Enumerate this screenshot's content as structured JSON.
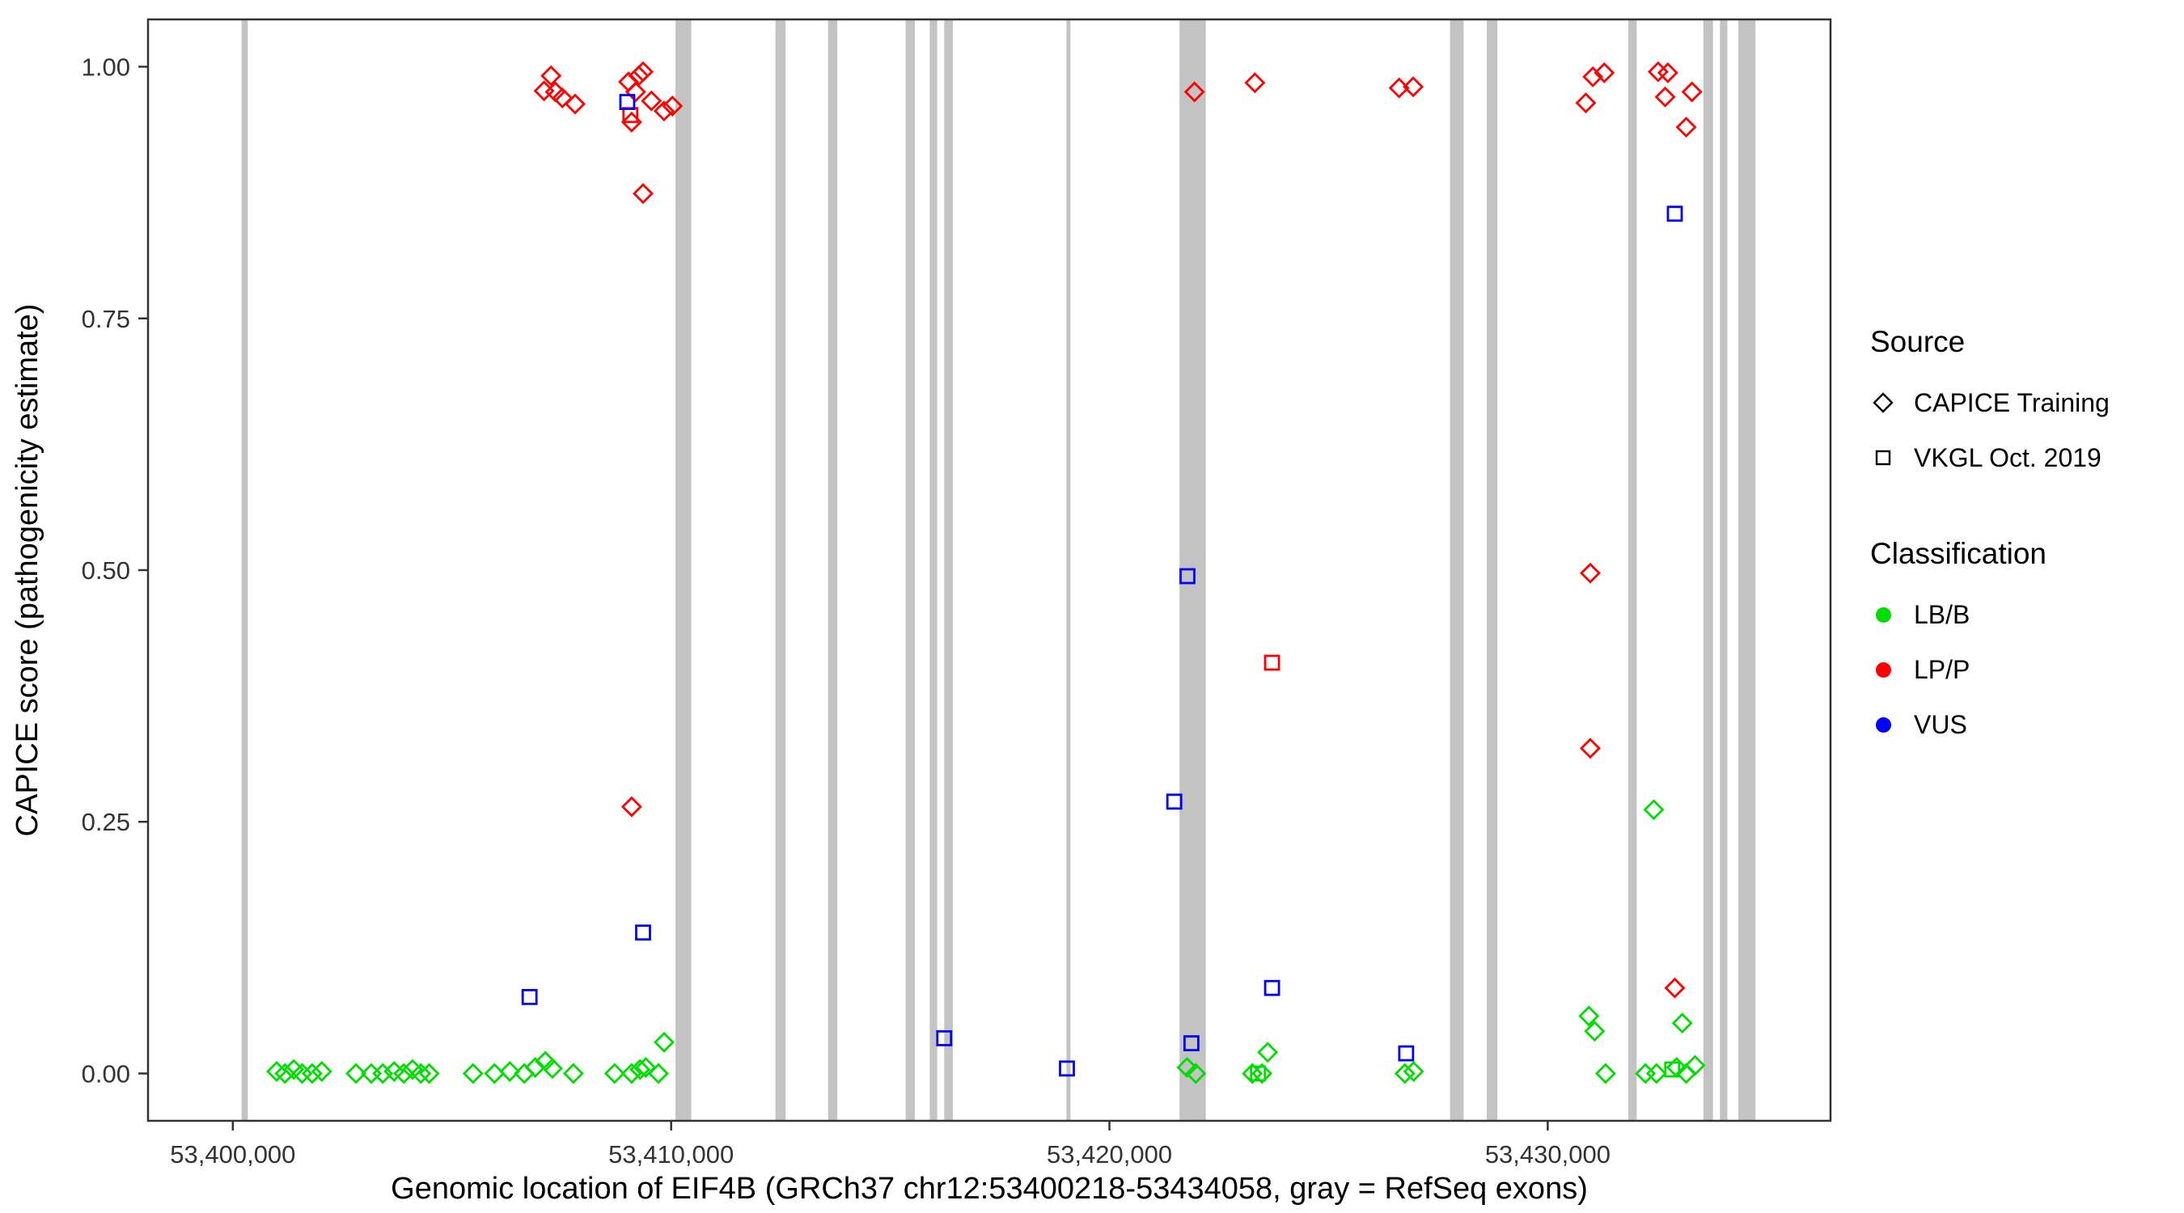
{
  "legend": {
    "source": {
      "title": "Source",
      "items": [
        {
          "label": "CAPICE Training",
          "shape": "diamond"
        },
        {
          "label": "VKGL Oct. 2019",
          "shape": "square"
        }
      ]
    },
    "classification": {
      "title": "Classification",
      "items": [
        {
          "label": "LB/B",
          "color": "#00DD00"
        },
        {
          "label": "LP/P",
          "color": "#FF0000"
        },
        {
          "label": "VUS",
          "color": "#0000FF"
        }
      ]
    }
  },
  "chart_data": {
    "type": "scatter",
    "title": "",
    "xlabel": "Genomic location of EIF4B (GRCh37 chr12:53400218-53434058, gray = RefSeq exons)",
    "ylabel": "CAPICE score (pathogenicity estimate)",
    "xlim": [
      53398065,
      53436452
    ],
    "ylim": [
      -0.047,
      1.047
    ],
    "grid": false,
    "legend_position": "right",
    "x_ticks": {
      "values": [
        53400000,
        53410000,
        53420000,
        53430000
      ],
      "labels": [
        "53,400,000",
        "53,410,000",
        "53,420,000",
        "53,430,000"
      ]
    },
    "y_ticks": {
      "values": [
        0,
        0.25,
        0.5,
        0.75,
        1
      ],
      "labels": [
        "0.00",
        "0.25",
        "0.50",
        "0.75",
        "1.00"
      ]
    },
    "exon_color": "#C3C3C3",
    "exons": [
      [
        53400200,
        53400340
      ],
      [
        53410100,
        53410460
      ],
      [
        53412380,
        53412610
      ],
      [
        53413580,
        53413790
      ],
      [
        53415350,
        53415560
      ],
      [
        53415900,
        53416070
      ],
      [
        53416230,
        53416430
      ],
      [
        53419020,
        53419110
      ],
      [
        53421600,
        53422200
      ],
      [
        53427770,
        53428080
      ],
      [
        53428610,
        53428850
      ],
      [
        53431840,
        53432030
      ],
      [
        53433550,
        53433770
      ],
      [
        53433930,
        53434100
      ],
      [
        53434350,
        53434740
      ]
    ],
    "series": [
      {
        "name": "CAPICE Training / LB/B",
        "source": "CAPICE Training",
        "classification": "LB/B",
        "shape": "diamond",
        "color": "#00DD00",
        "points": [
          [
            53401000,
            0.002
          ],
          [
            53401190,
            0.0
          ],
          [
            53401390,
            0.004
          ],
          [
            53401580,
            0.0
          ],
          [
            53401810,
            0.0
          ],
          [
            53402030,
            0.002
          ],
          [
            53402810,
            0.0
          ],
          [
            53403160,
            0.0
          ],
          [
            53403420,
            0.0
          ],
          [
            53403680,
            0.002
          ],
          [
            53403900,
            0.0
          ],
          [
            53404100,
            0.004
          ],
          [
            53404290,
            0.0
          ],
          [
            53404480,
            0.0
          ],
          [
            53405480,
            0.0
          ],
          [
            53405970,
            0.0
          ],
          [
            53406320,
            0.002
          ],
          [
            53406650,
            0.0
          ],
          [
            53406900,
            0.006
          ],
          [
            53407130,
            0.012
          ],
          [
            53407290,
            0.005
          ],
          [
            53407770,
            0.0
          ],
          [
            53408710,
            0.0
          ],
          [
            53409100,
            0.0
          ],
          [
            53409290,
            0.004
          ],
          [
            53409420,
            0.006
          ],
          [
            53409710,
            0.0
          ],
          [
            53409840,
            0.031
          ],
          [
            53421770,
            0.006
          ],
          [
            53421970,
            0.0
          ],
          [
            53423260,
            0.0
          ],
          [
            53423480,
            0.0
          ],
          [
            53423610,
            0.021
          ],
          [
            53426740,
            0.0
          ],
          [
            53426940,
            0.002
          ],
          [
            53430940,
            0.057
          ],
          [
            53431070,
            0.042
          ],
          [
            53431320,
            0.0
          ],
          [
            53432230,
            0.0
          ],
          [
            53432480,
            0.0
          ],
          [
            53432420,
            0.262
          ],
          [
            53432940,
            0.006
          ],
          [
            53433070,
            0.05
          ],
          [
            53433160,
            0.0
          ],
          [
            53433360,
            0.008
          ]
        ]
      },
      {
        "name": "CAPICE Training / LP/P",
        "source": "CAPICE Training",
        "classification": "LP/P",
        "shape": "diamond",
        "color": "#FF0000",
        "points": [
          [
            53407100,
            0.976
          ],
          [
            53407260,
            0.991
          ],
          [
            53407360,
            0.975
          ],
          [
            53407520,
            0.969
          ],
          [
            53407810,
            0.963
          ],
          [
            53409030,
            0.985
          ],
          [
            53409100,
            0.945
          ],
          [
            53409190,
            0.975
          ],
          [
            53409260,
            0.991
          ],
          [
            53409360,
            0.995
          ],
          [
            53409550,
            0.966
          ],
          [
            53409840,
            0.956
          ],
          [
            53410030,
            0.961
          ],
          [
            53409360,
            0.874
          ],
          [
            53409100,
            0.265
          ],
          [
            53421940,
            0.975
          ],
          [
            53423320,
            0.984
          ],
          [
            53426610,
            0.979
          ],
          [
            53426930,
            0.98
          ],
          [
            53430870,
            0.964
          ],
          [
            53431030,
            0.99
          ],
          [
            53431290,
            0.994
          ],
          [
            53432520,
            0.995
          ],
          [
            53432740,
            0.994
          ],
          [
            53432680,
            0.97
          ],
          [
            53433290,
            0.975
          ],
          [
            53433160,
            0.94
          ],
          [
            53430970,
            0.497
          ],
          [
            53430970,
            0.323
          ],
          [
            53432900,
            0.085
          ]
        ]
      },
      {
        "name": "VKGL Oct. 2019 / LB/B",
        "source": "VKGL Oct. 2019",
        "classification": "LB/B",
        "shape": "square",
        "color": "#00DD00",
        "points": [
          [
            53423390,
            0.0
          ],
          [
            53432840,
            0.004
          ]
        ]
      },
      {
        "name": "VKGL Oct. 2019 / LP/P",
        "source": "VKGL Oct. 2019",
        "classification": "LP/P",
        "shape": "square",
        "color": "#FF0000",
        "points": [
          [
            53409070,
            0.952
          ],
          [
            53423710,
            0.408
          ]
        ]
      },
      {
        "name": "VKGL Oct. 2019 / VUS",
        "source": "VKGL Oct. 2019",
        "classification": "VUS",
        "shape": "square",
        "color": "#0000FF",
        "points": [
          [
            53406770,
            0.076
          ],
          [
            53409000,
            0.965
          ],
          [
            53409360,
            0.14
          ],
          [
            53416230,
            0.035
          ],
          [
            53419030,
            0.005
          ],
          [
            53421480,
            0.27
          ],
          [
            53421780,
            0.494
          ],
          [
            53421870,
            0.03
          ],
          [
            53423710,
            0.085
          ],
          [
            53426770,
            0.02
          ],
          [
            53432900,
            0.854
          ]
        ]
      }
    ]
  }
}
